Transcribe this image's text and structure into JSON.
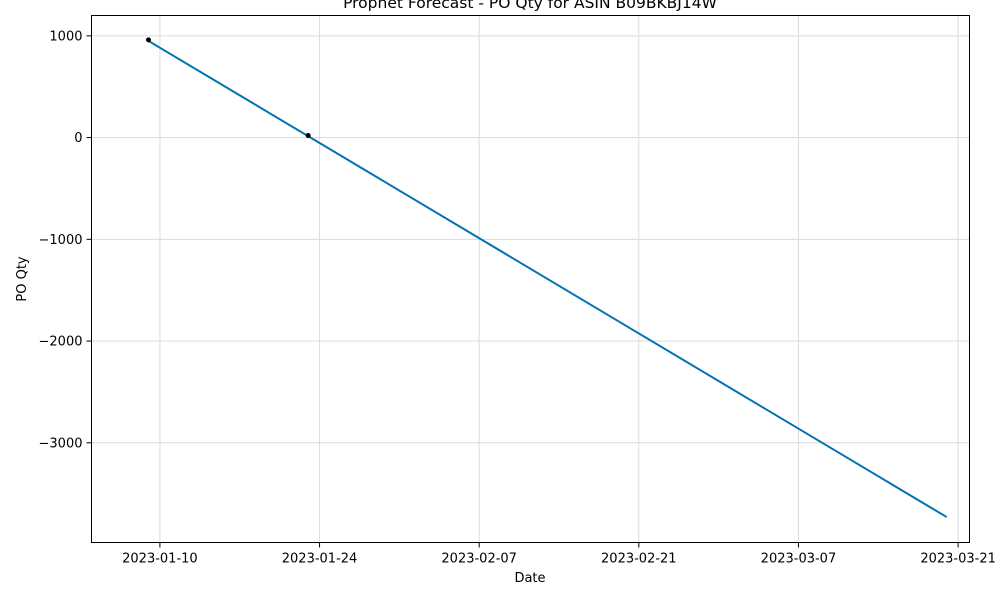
{
  "chart_data": {
    "type": "line",
    "title": "Prophet Forecast - PO Qty for ASIN B09BKBJ14W",
    "xlabel": "Date",
    "ylabel": "PO Qty",
    "x_axis_type": "date",
    "xlim": [
      "2023-01-04",
      "2023-03-22"
    ],
    "ylim": [
      -3980,
      1200
    ],
    "grid": true,
    "x_ticks": [
      {
        "value": "2023-01-10",
        "label": "2023-01-10"
      },
      {
        "value": "2023-01-24",
        "label": "2023-01-24"
      },
      {
        "value": "2023-02-07",
        "label": "2023-02-07"
      },
      {
        "value": "2023-02-21",
        "label": "2023-02-21"
      },
      {
        "value": "2023-03-07",
        "label": "2023-03-07"
      },
      {
        "value": "2023-03-21",
        "label": "2023-03-21"
      }
    ],
    "y_ticks": [
      {
        "value": 1000,
        "label": "1000"
      },
      {
        "value": 0,
        "label": "0"
      },
      {
        "value": -1000,
        "label": "−1000"
      },
      {
        "value": -2000,
        "label": "−2000"
      },
      {
        "value": -3000,
        "label": "−3000"
      }
    ],
    "series": [
      {
        "kind": "line",
        "color": "#0072B2",
        "points": [
          {
            "x": "2023-01-09",
            "y": 950
          },
          {
            "x": "2023-03-20",
            "y": -3730
          }
        ]
      },
      {
        "kind": "scatter",
        "color": "#000000",
        "points": [
          {
            "x": "2023-01-09",
            "y": 960
          },
          {
            "x": "2023-01-23",
            "y": 20
          }
        ]
      }
    ]
  }
}
